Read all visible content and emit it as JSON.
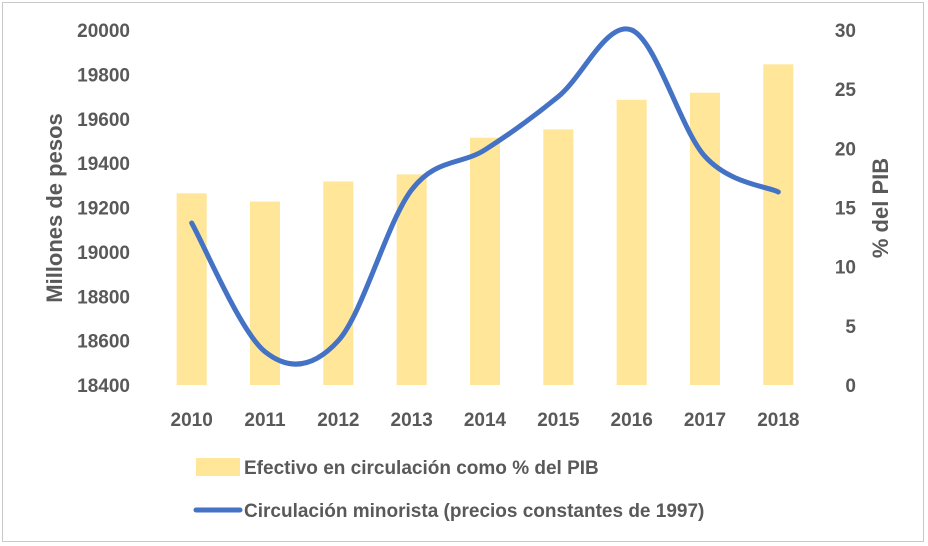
{
  "chart_data": {
    "type": "bar+line",
    "categories": [
      "2010",
      "2011",
      "2012",
      "2013",
      "2014",
      "2015",
      "2016",
      "2017",
      "2018"
    ],
    "series": [
      {
        "name": "Efectivo en circulación como % del PIB",
        "type": "bar",
        "axis": "right",
        "color": "#ffe699",
        "values": [
          16.2,
          15.5,
          17.2,
          17.8,
          20.9,
          21.6,
          24.1,
          24.7,
          27.1
        ]
      },
      {
        "name": "Circulación minorista (precios constantes de 1997)",
        "type": "line",
        "axis": "left",
        "color": "#4472c4",
        "values": [
          19130,
          18550,
          18600,
          19280,
          19460,
          19700,
          20000,
          19430,
          19270
        ]
      }
    ],
    "y_left": {
      "label": "Millones de pesos",
      "range": [
        18400,
        20000
      ],
      "ticks": [
        "20000",
        "19800",
        "19600",
        "19400",
        "19200",
        "19000",
        "18800",
        "18600",
        "18400"
      ]
    },
    "y_right": {
      "label": "% del PIB",
      "range": [
        0,
        30
      ],
      "ticks": [
        "30",
        "25",
        "20",
        "15",
        "10",
        "5",
        "0"
      ]
    },
    "legend": "bottom",
    "grid": false
  }
}
